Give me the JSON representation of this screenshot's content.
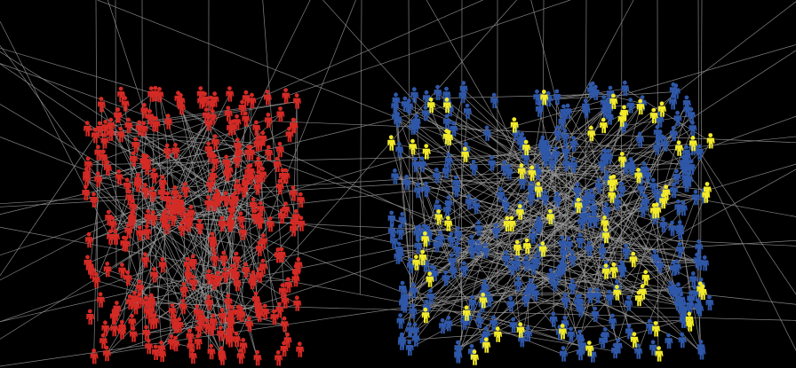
{
  "background": "#000000",
  "edge_color": "#9a9a9a",
  "groups": [
    {
      "name": "red-group",
      "color": "#d42a25",
      "count": 300
    },
    {
      "name": "blue-group",
      "color": "#2f57a8",
      "count": 330
    },
    {
      "name": "yellow-group",
      "color": "#f2ea2a",
      "count": 75
    }
  ],
  "icon": "person-icon"
}
